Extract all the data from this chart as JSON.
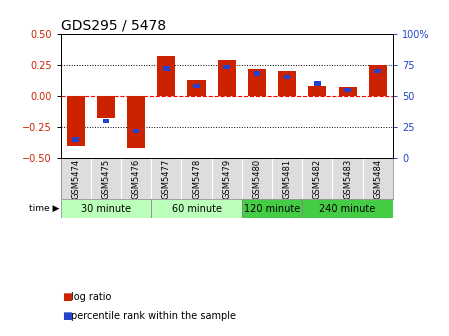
{
  "title": "GDS295 / 5478",
  "samples": [
    "GSM5474",
    "GSM5475",
    "GSM5476",
    "GSM5477",
    "GSM5478",
    "GSM5479",
    "GSM5480",
    "GSM5481",
    "GSM5482",
    "GSM5483",
    "GSM5484"
  ],
  "log_ratio": [
    -0.4,
    -0.18,
    -0.42,
    0.32,
    0.13,
    0.29,
    0.22,
    0.2,
    0.08,
    0.07,
    0.25
  ],
  "percentile": [
    15,
    30,
    22,
    72,
    58,
    73,
    68,
    65,
    60,
    55,
    70
  ],
  "groups": [
    {
      "label": "30 minute",
      "start": 0,
      "end": 2
    },
    {
      "label": "60 minute",
      "start": 3,
      "end": 5
    },
    {
      "label": "120 minute",
      "start": 6,
      "end": 7
    },
    {
      "label": "240 minute",
      "start": 8,
      "end": 10
    }
  ],
  "group_colors": [
    "#bbffbb",
    "#bbffbb",
    "#44cc44",
    "#44cc44"
  ],
  "bar_color_red": "#cc2200",
  "bar_color_blue": "#2244cc",
  "left_ylim": [
    -0.5,
    0.5
  ],
  "right_ylim": [
    0,
    100
  ],
  "left_yticks": [
    -0.5,
    -0.25,
    0,
    0.25,
    0.5
  ],
  "right_yticks": [
    0,
    25,
    50,
    75,
    100
  ],
  "hline_positions": [
    -0.25,
    0,
    0.25
  ],
  "bg_color": "#ffffff",
  "title_fontsize": 10,
  "tick_fontsize": 7,
  "sample_fontsize": 6,
  "group_fontsize": 7,
  "legend_fontsize": 7,
  "bar_width": 0.6,
  "blue_bar_width": 0.22,
  "blue_bar_height": 0.035
}
